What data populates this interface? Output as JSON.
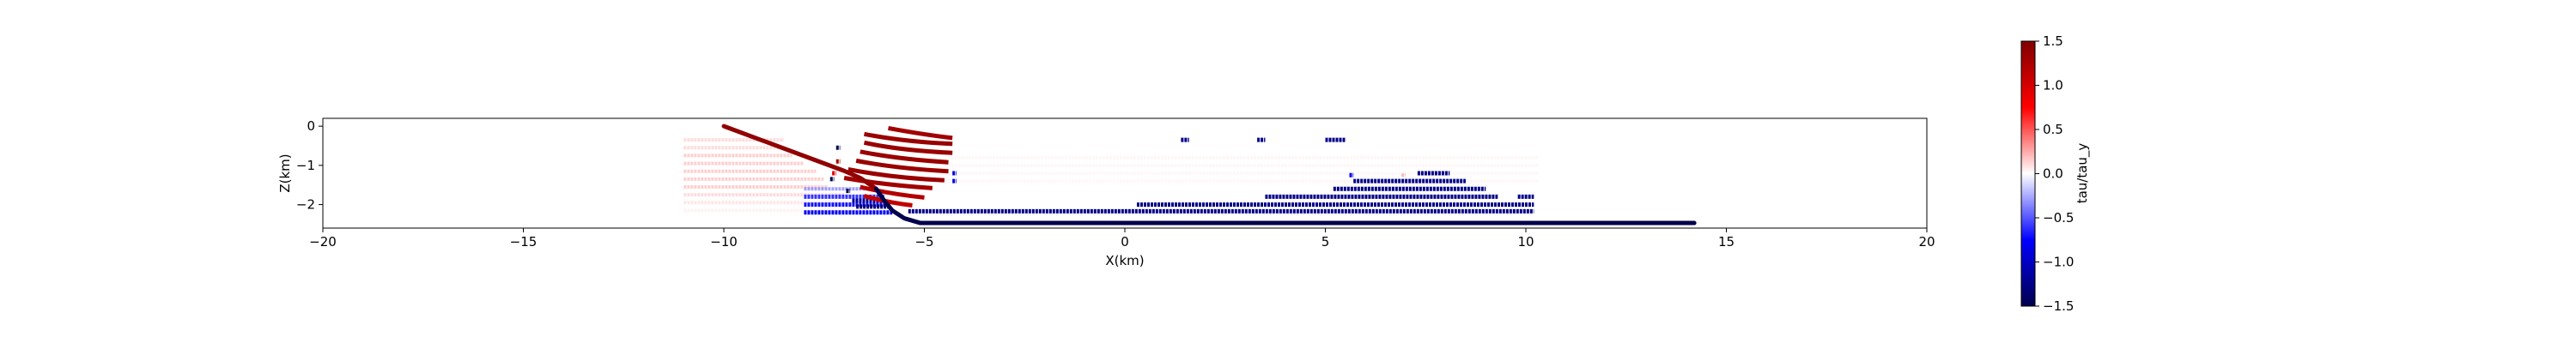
{
  "chart_data": {
    "type": "scatter",
    "title": "",
    "xlabel": "X(km)",
    "ylabel": "Z(km)",
    "xlim": [
      -20,
      20
    ],
    "ylim": [
      -2.6,
      0.2
    ],
    "x_ticks": [
      -20,
      -15,
      -10,
      -5,
      0,
      5,
      10,
      15,
      20
    ],
    "x_tick_labels": [
      "−20",
      "−15",
      "−10",
      "−5",
      "0",
      "5",
      "10",
      "15",
      "20"
    ],
    "y_ticks": [
      0,
      -1,
      -2
    ],
    "y_tick_labels": [
      "0",
      "−1",
      "−2"
    ],
    "grid": false,
    "colormap": "seismic",
    "colorbar": {
      "label": "tau/tau_y",
      "vmin": -1.5,
      "vmax": 1.5,
      "ticks": [
        1.5,
        1.0,
        0.5,
        0.0,
        -0.5,
        -1.0,
        -1.5
      ],
      "tick_labels": [
        "1.5",
        "1.0",
        "0.5",
        "0.0",
        "−0.5",
        "−1.0",
        "−1.5"
      ]
    },
    "fault_lines": [
      {
        "value": 1.4,
        "points": [
          [
            -10.0,
            0.0
          ],
          [
            -9.0,
            -0.38
          ],
          [
            -8.0,
            -0.76
          ],
          [
            -7.0,
            -1.14
          ],
          [
            -6.6,
            -1.32
          ],
          [
            -6.2,
            -1.6
          ]
        ]
      },
      {
        "value": -1.5,
        "points": [
          [
            -6.2,
            -1.6
          ],
          [
            -6.0,
            -1.9
          ],
          [
            -5.8,
            -2.15
          ],
          [
            -5.5,
            -2.35
          ],
          [
            -5.1,
            -2.47
          ],
          [
            14.2,
            -2.47
          ]
        ]
      }
    ],
    "segments": [
      {
        "x0": -11.0,
        "x1": -8.5,
        "z": -0.35,
        "value": 0.15
      },
      {
        "x0": -11.0,
        "x1": -8.5,
        "z": -0.55,
        "value": 0.15
      },
      {
        "x0": -11.0,
        "x1": -8.3,
        "z": -0.75,
        "value": 0.2
      },
      {
        "x0": -11.0,
        "x1": -8.0,
        "z": -0.95,
        "value": 0.2
      },
      {
        "x0": -11.0,
        "x1": -7.7,
        "z": -1.15,
        "value": 0.2
      },
      {
        "x0": -11.0,
        "x1": -7.5,
        "z": -1.35,
        "value": 0.2
      },
      {
        "x0": -11.0,
        "x1": -7.4,
        "z": -1.55,
        "value": 0.2
      },
      {
        "x0": -11.0,
        "x1": -7.0,
        "z": -1.75,
        "value": 0.15
      },
      {
        "x0": -11.0,
        "x1": -6.6,
        "z": -1.95,
        "value": 0.1
      },
      {
        "x0": -11.0,
        "x1": -6.4,
        "z": -2.15,
        "value": 0.05
      },
      {
        "x0": -4.5,
        "x1": 10.3,
        "z": -0.8,
        "value": 0.03
      },
      {
        "x0": -4.5,
        "x1": 10.3,
        "z": -1.0,
        "value": 0.03
      },
      {
        "x0": -4.5,
        "x1": 10.3,
        "z": -1.2,
        "value": 0.03
      },
      {
        "x0": -4.5,
        "x1": 10.3,
        "z": -1.4,
        "value": 0.03
      },
      {
        "x0": -8.0,
        "x1": -6.2,
        "z": -1.6,
        "value": -0.4
      },
      {
        "x0": -8.0,
        "x1": -6.0,
        "z": -1.8,
        "value": -0.6
      },
      {
        "x0": -8.0,
        "x1": -5.9,
        "z": -2.0,
        "value": -0.7
      },
      {
        "x0": -8.0,
        "x1": -5.8,
        "z": -2.2,
        "value": -0.8
      },
      {
        "x0": -6.8,
        "x1": -6.0,
        "z": -1.9,
        "value": -1.2
      },
      {
        "x0": -6.7,
        "x1": -5.9,
        "z": -2.05,
        "value": -1.3
      },
      {
        "x0": -5.4,
        "x1": 10.2,
        "z": -2.17,
        "value": -1.25
      },
      {
        "x0": 0.3,
        "x1": 10.2,
        "z": -2.0,
        "value": -1.25
      },
      {
        "x0": 3.5,
        "x1": 9.3,
        "z": -1.8,
        "value": -1.25
      },
      {
        "x0": 9.8,
        "x1": 10.2,
        "z": -1.8,
        "value": -1.25
      },
      {
        "x0": 5.2,
        "x1": 9.0,
        "z": -1.6,
        "value": -1.25
      },
      {
        "x0": 5.7,
        "x1": 8.5,
        "z": -1.4,
        "value": -1.25
      },
      {
        "x0": 7.3,
        "x1": 8.1,
        "z": -1.2,
        "value": -1.25
      },
      {
        "x0": 1.4,
        "x1": 1.6,
        "z": -0.35,
        "value": -1.25
      },
      {
        "x0": 3.3,
        "x1": 3.5,
        "z": -0.35,
        "value": -1.25
      },
      {
        "x0": 5.0,
        "x1": 5.5,
        "z": -0.35,
        "value": -1.25
      },
      {
        "x0": -7.2,
        "x1": -7.1,
        "z": -0.55,
        "value": -1.5
      },
      {
        "x0": -6.95,
        "x1": -6.85,
        "z": -1.65,
        "value": -1.5
      },
      {
        "x0": -7.35,
        "x1": -7.25,
        "z": -1.35,
        "value": -1.5
      },
      {
        "x0": -4.3,
        "x1": -4.2,
        "z": -1.2,
        "value": -0.9
      },
      {
        "x0": -4.3,
        "x1": -4.2,
        "z": -1.4,
        "value": -0.9
      },
      {
        "x0": 5.6,
        "x1": 5.7,
        "z": -1.25,
        "value": -0.8
      },
      {
        "x0": 6.9,
        "x1": 7.0,
        "z": -1.25,
        "value": 0.3
      },
      {
        "x0": -7.2,
        "x1": -7.1,
        "z": -0.9,
        "value": 1.3
      },
      {
        "x0": -7.3,
        "x1": -7.2,
        "z": -1.2,
        "value": 0.9
      }
    ],
    "arcs": [
      {
        "points": [
          [
            -5.9,
            -0.05
          ],
          [
            -5.0,
            -0.22
          ],
          [
            -4.3,
            -0.3
          ]
        ],
        "value": 1.3
      },
      {
        "points": [
          [
            -6.5,
            -0.2
          ],
          [
            -5.5,
            -0.4
          ],
          [
            -4.3,
            -0.45
          ]
        ],
        "value": 1.35
      },
      {
        "points": [
          [
            -6.5,
            -0.42
          ],
          [
            -5.6,
            -0.62
          ],
          [
            -4.3,
            -0.68
          ]
        ],
        "value": 1.35
      },
      {
        "points": [
          [
            -6.6,
            -0.65
          ],
          [
            -5.6,
            -0.85
          ],
          [
            -4.4,
            -0.92
          ]
        ],
        "value": 1.35
      },
      {
        "points": [
          [
            -6.7,
            -0.88
          ],
          [
            -5.7,
            -1.08
          ],
          [
            -4.4,
            -1.15
          ]
        ],
        "value": 1.35
      },
      {
        "points": [
          [
            -6.9,
            -1.1
          ],
          [
            -5.8,
            -1.32
          ],
          [
            -4.5,
            -1.38
          ]
        ],
        "value": 1.35
      },
      {
        "points": [
          [
            -7.0,
            -1.32
          ],
          [
            -6.0,
            -1.5
          ],
          [
            -4.8,
            -1.58
          ]
        ],
        "value": 1.3
      },
      {
        "points": [
          [
            -6.6,
            -1.55
          ],
          [
            -5.8,
            -1.74
          ],
          [
            -5.0,
            -1.82
          ]
        ],
        "value": 1.2
      },
      {
        "points": [
          [
            -6.5,
            -1.78
          ],
          [
            -5.9,
            -1.95
          ],
          [
            -5.3,
            -2.02
          ]
        ],
        "value": 1.1
      }
    ]
  }
}
